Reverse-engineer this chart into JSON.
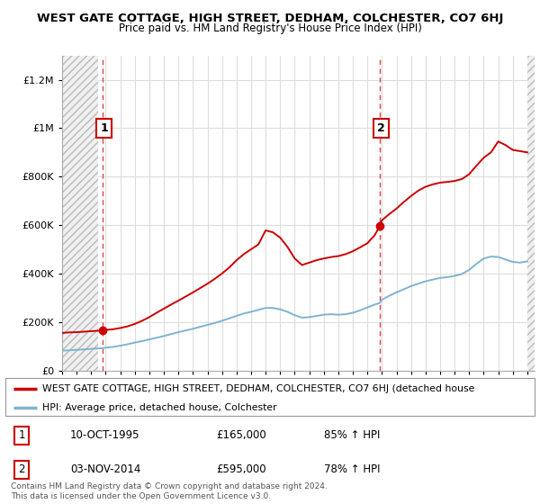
{
  "title": "WEST GATE COTTAGE, HIGH STREET, DEDHAM, COLCHESTER, CO7 6HJ",
  "subtitle": "Price paid vs. HM Land Registry's House Price Index (HPI)",
  "ylim": [
    0,
    1300000
  ],
  "yticks": [
    0,
    200000,
    400000,
    600000,
    800000,
    1000000,
    1200000
  ],
  "ytick_labels": [
    "£0",
    "£200K",
    "£400K",
    "£600K",
    "£800K",
    "£1M",
    "£1.2M"
  ],
  "sale1_date": 1995.78,
  "sale1_price": 165000,
  "sale2_date": 2014.84,
  "sale2_price": 595000,
  "red_line_color": "#cc0000",
  "blue_line_color": "#7fb3d3",
  "vline_color": "#dd4444",
  "legend_red_label": "WEST GATE COTTAGE, HIGH STREET, DEDHAM, COLCHESTER, CO7 6HJ (detached house",
  "legend_blue_label": "HPI: Average price, detached house, Colchester",
  "table_row1": [
    "1",
    "10-OCT-1995",
    "£165,000",
    "85% ↑ HPI"
  ],
  "table_row2": [
    "2",
    "03-NOV-2014",
    "£595,000",
    "78% ↑ HPI"
  ],
  "footer": "Contains HM Land Registry data © Crown copyright and database right 2024.\nThis data is licensed under the Open Government Licence v3.0.",
  "red_x": [
    1993.0,
    1993.5,
    1994.0,
    1994.5,
    1995.0,
    1995.78,
    1996.0,
    1996.5,
    1997.0,
    1997.5,
    1998.0,
    1998.5,
    1999.0,
    1999.5,
    2000.0,
    2000.5,
    2001.0,
    2001.5,
    2002.0,
    2002.5,
    2003.0,
    2003.5,
    2004.0,
    2004.5,
    2005.0,
    2005.5,
    2006.0,
    2006.5,
    2007.0,
    2007.5,
    2008.0,
    2008.5,
    2009.0,
    2009.5,
    2010.0,
    2010.5,
    2011.0,
    2011.5,
    2012.0,
    2012.5,
    2013.0,
    2013.5,
    2014.0,
    2014.5,
    2014.84,
    2015.0,
    2015.5,
    2016.0,
    2016.5,
    2017.0,
    2017.5,
    2018.0,
    2018.5,
    2019.0,
    2019.5,
    2020.0,
    2020.5,
    2021.0,
    2021.5,
    2022.0,
    2022.5,
    2023.0,
    2023.5,
    2024.0,
    2024.5,
    2025.0
  ],
  "red_y": [
    155000,
    157000,
    158000,
    160000,
    162000,
    165000,
    167000,
    170000,
    175000,
    182000,
    192000,
    205000,
    220000,
    238000,
    255000,
    272000,
    288000,
    305000,
    322000,
    340000,
    358000,
    378000,
    400000,
    425000,
    455000,
    480000,
    500000,
    520000,
    578000,
    570000,
    548000,
    510000,
    462000,
    435000,
    445000,
    455000,
    462000,
    468000,
    472000,
    480000,
    492000,
    508000,
    525000,
    558000,
    595000,
    620000,
    645000,
    668000,
    695000,
    720000,
    742000,
    758000,
    768000,
    775000,
    778000,
    782000,
    790000,
    810000,
    845000,
    878000,
    900000,
    945000,
    930000,
    910000,
    905000,
    900000
  ],
  "blue_x": [
    1993.0,
    1993.5,
    1994.0,
    1994.5,
    1995.0,
    1995.5,
    1995.78,
    1996.0,
    1996.5,
    1997.0,
    1997.5,
    1998.0,
    1998.5,
    1999.0,
    1999.5,
    2000.0,
    2000.5,
    2001.0,
    2001.5,
    2002.0,
    2002.5,
    2003.0,
    2003.5,
    2004.0,
    2004.5,
    2005.0,
    2005.5,
    2006.0,
    2006.5,
    2007.0,
    2007.5,
    2008.0,
    2008.5,
    2009.0,
    2009.5,
    2010.0,
    2010.5,
    2011.0,
    2011.5,
    2012.0,
    2012.5,
    2013.0,
    2013.5,
    2014.0,
    2014.5,
    2014.84,
    2015.0,
    2015.5,
    2016.0,
    2016.5,
    2017.0,
    2017.5,
    2018.0,
    2018.5,
    2019.0,
    2019.5,
    2020.0,
    2020.5,
    2021.0,
    2021.5,
    2022.0,
    2022.5,
    2023.0,
    2023.5,
    2024.0,
    2024.5,
    2025.0
  ],
  "blue_y": [
    82000,
    83000,
    85000,
    87000,
    89000,
    91000,
    92000,
    94000,
    97000,
    102000,
    108000,
    115000,
    121000,
    128000,
    135000,
    142000,
    150000,
    158000,
    165000,
    172000,
    180000,
    188000,
    196000,
    205000,
    215000,
    225000,
    235000,
    242000,
    250000,
    258000,
    258000,
    252000,
    242000,
    228000,
    218000,
    220000,
    225000,
    230000,
    232000,
    230000,
    232000,
    238000,
    248000,
    260000,
    272000,
    278000,
    292000,
    308000,
    322000,
    335000,
    348000,
    358000,
    368000,
    375000,
    382000,
    385000,
    390000,
    398000,
    415000,
    440000,
    462000,
    470000,
    468000,
    458000,
    448000,
    445000,
    450000
  ]
}
